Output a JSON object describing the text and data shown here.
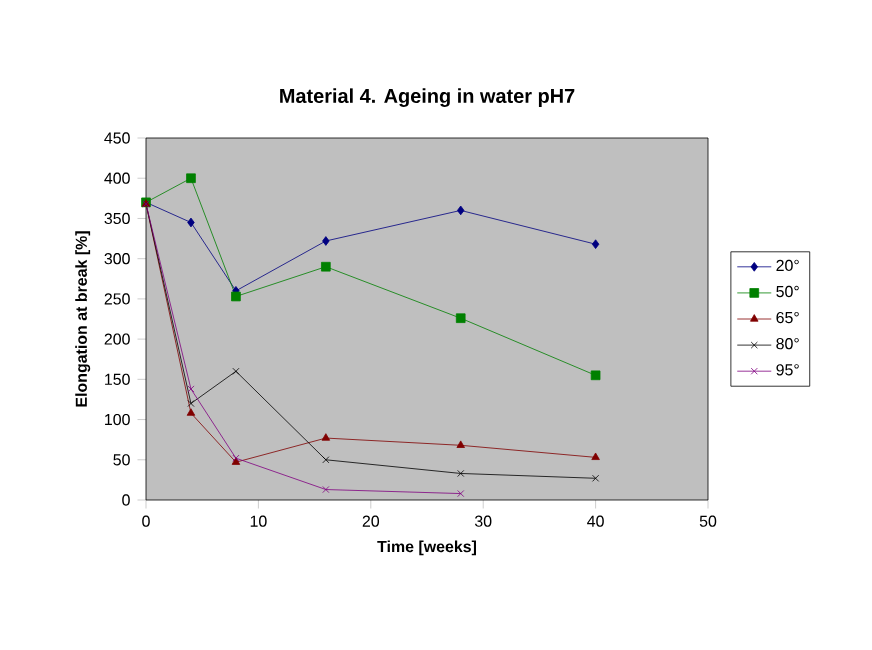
{
  "chart_data": {
    "type": "line",
    "title": "Material 4. Ageing in water pH7",
    "xlabel": "Time [weeks]",
    "ylabel": "Elongation at break [%]",
    "xlim": [
      0,
      50
    ],
    "xticks": [
      0,
      10,
      20,
      30,
      40,
      50
    ],
    "ylim": [
      0,
      450
    ],
    "yticks": [
      0,
      50,
      100,
      150,
      200,
      250,
      300,
      350,
      400,
      450
    ],
    "grid": false,
    "legend": "right",
    "series": [
      {
        "name": "20°",
        "color": "#000080",
        "marker": "diamond",
        "x": [
          0,
          4,
          8,
          16,
          28,
          40
        ],
        "values": [
          370,
          345,
          260,
          322,
          360,
          318
        ]
      },
      {
        "name": "50°",
        "color": "#008000",
        "marker": "square",
        "x": [
          0,
          4,
          8,
          16,
          28,
          40
        ],
        "values": [
          370,
          400,
          253,
          290,
          226,
          155
        ]
      },
      {
        "name": "65°",
        "color": "#800000",
        "marker": "triangle",
        "x": [
          0,
          4,
          8,
          16,
          28,
          40
        ],
        "values": [
          368,
          108,
          47,
          77,
          68,
          53
        ]
      },
      {
        "name": "80°",
        "color": "#000000",
        "marker": "cross",
        "x": [
          0,
          4,
          8,
          16,
          28,
          40
        ],
        "values": [
          368,
          120,
          160,
          50,
          33,
          27
        ]
      },
      {
        "name": "95°",
        "color": "#800080",
        "marker": "cross",
        "x": [
          0,
          4,
          8,
          16,
          28
        ],
        "values": [
          368,
          138,
          52,
          13,
          8
        ]
      }
    ]
  }
}
